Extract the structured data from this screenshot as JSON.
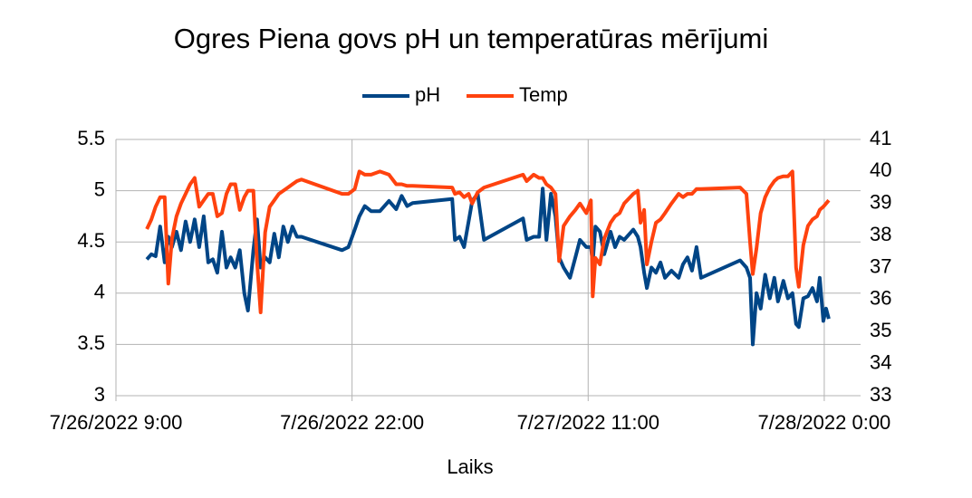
{
  "chart_data": {
    "type": "line",
    "title": "Ogres Piena govs pH un temperatūras mērījumi",
    "x_label": "Laiks",
    "x": [
      "2022-07-26 10:42",
      "2022-07-26 10:57",
      "2022-07-26 11:11",
      "2022-07-26 11:26",
      "2022-07-26 11:41",
      "2022-07-26 11:53",
      "2022-07-26 12:05",
      "2022-07-26 12:20",
      "2022-07-26 12:35",
      "2022-07-26 12:50",
      "2022-07-26 13:05",
      "2022-07-26 13:20",
      "2022-07-26 13:35",
      "2022-07-26 13:50",
      "2022-07-26 14:05",
      "2022-07-26 14:20",
      "2022-07-26 14:35",
      "2022-07-26 14:50",
      "2022-07-26 15:05",
      "2022-07-26 15:19",
      "2022-07-26 15:34",
      "2022-07-26 15:49",
      "2022-07-26 16:04",
      "2022-07-26 16:16",
      "2022-07-26 16:34",
      "2022-07-26 16:46",
      "2022-07-26 16:58",
      "2022-07-26 17:13",
      "2022-07-26 17:28",
      "2022-07-26 17:43",
      "2022-07-26 17:58",
      "2022-07-26 18:13",
      "2022-07-26 18:28",
      "2022-07-26 18:43",
      "2022-07-26 18:58",
      "2022-07-26 19:13",
      "2022-07-26 21:27",
      "2022-07-26 21:48",
      "2022-07-26 22:09",
      "2022-07-26 22:24",
      "2022-07-26 22:42",
      "2022-07-26 23:03",
      "2022-07-26 23:32",
      "2022-07-27 00:02",
      "2022-07-27 00:26",
      "2022-07-27 00:44",
      "2022-07-27 01:02",
      "2022-07-27 01:20",
      "2022-07-27 03:31",
      "2022-07-27 03:40",
      "2022-07-27 03:55",
      "2022-07-27 04:10",
      "2022-07-27 04:25",
      "2022-07-27 04:37",
      "2022-07-27 04:55",
      "2022-07-27 05:16",
      "2022-07-27 07:25",
      "2022-07-27 07:37",
      "2022-07-27 08:00",
      "2022-07-27 08:18",
      "2022-07-27 08:30",
      "2022-07-27 08:42",
      "2022-07-27 08:57",
      "2022-07-27 09:12",
      "2022-07-27 09:24",
      "2022-07-27 09:39",
      "2022-07-27 10:00",
      "2022-07-27 10:18",
      "2022-07-27 10:33",
      "2022-07-27 10:54",
      "2022-07-27 11:09",
      "2022-07-27 11:15",
      "2022-07-27 11:24",
      "2022-07-27 11:39",
      "2022-07-27 11:53",
      "2022-07-27 12:14",
      "2022-07-27 12:29",
      "2022-07-27 12:44",
      "2022-07-27 12:59",
      "2022-07-27 13:29",
      "2022-07-27 13:44",
      "2022-07-27 13:53",
      "2022-07-27 14:05",
      "2022-07-27 14:14",
      "2022-07-27 14:29",
      "2022-07-27 14:44",
      "2022-07-27 14:59",
      "2022-07-27 15:14",
      "2022-07-27 15:35",
      "2022-07-27 15:59",
      "2022-07-27 16:13",
      "2022-07-27 16:28",
      "2022-07-27 16:43",
      "2022-07-27 16:58",
      "2022-07-27 17:13",
      "2022-07-27 19:22",
      "2022-07-27 19:43",
      "2022-07-27 19:55",
      "2022-07-27 20:04",
      "2022-07-27 20:16",
      "2022-07-27 20:30",
      "2022-07-27 20:45",
      "2022-07-27 21:00",
      "2022-07-27 21:15",
      "2022-07-27 21:27",
      "2022-07-27 21:45",
      "2022-07-27 22:00",
      "2022-07-27 22:15",
      "2022-07-27 22:27",
      "2022-07-27 22:36",
      "2022-07-27 22:51",
      "2022-07-27 23:06",
      "2022-07-27 23:21",
      "2022-07-27 23:36",
      "2022-07-27 23:45",
      "2022-07-27 23:57",
      "2022-07-28 00:06",
      "2022-07-28 00:15"
    ],
    "series": [
      {
        "name": "pH",
        "color": "#004586",
        "values": [
          4.33,
          4.38,
          4.36,
          4.65,
          4.3,
          4.55,
          4.45,
          4.6,
          4.42,
          4.7,
          4.5,
          4.72,
          4.45,
          4.75,
          4.3,
          4.33,
          4.2,
          4.6,
          4.25,
          4.35,
          4.25,
          4.42,
          4.0,
          3.83,
          4.42,
          4.72,
          4.25,
          4.35,
          4.3,
          4.58,
          4.35,
          4.65,
          4.5,
          4.65,
          4.55,
          4.55,
          4.42,
          4.45,
          4.62,
          4.75,
          4.85,
          4.8,
          4.8,
          4.9,
          4.82,
          4.95,
          4.85,
          4.88,
          4.92,
          4.52,
          4.55,
          4.45,
          4.7,
          4.9,
          4.97,
          4.52,
          4.73,
          4.52,
          4.55,
          4.55,
          5.02,
          4.52,
          4.97,
          4.75,
          4.35,
          4.25,
          4.15,
          4.35,
          4.52,
          4.45,
          4.45,
          4.3,
          4.65,
          4.6,
          4.38,
          4.6,
          4.45,
          4.55,
          4.52,
          4.62,
          4.55,
          4.45,
          4.2,
          4.05,
          4.25,
          4.2,
          4.3,
          4.15,
          4.22,
          4.15,
          4.28,
          4.35,
          4.22,
          4.45,
          4.15,
          4.32,
          4.25,
          4.15,
          3.5,
          4.0,
          3.85,
          4.18,
          3.95,
          4.15,
          3.92,
          4.12,
          3.95,
          4.0,
          3.7,
          3.67,
          3.95,
          3.97,
          4.05,
          3.92,
          4.15,
          3.73,
          3.85,
          3.75
        ]
      },
      {
        "name": "Temp",
        "color": "#ff420e",
        "axis": "y2",
        "values": [
          38.2,
          38.5,
          38.9,
          39.2,
          39.2,
          36.5,
          37.9,
          38.6,
          39.0,
          39.3,
          39.6,
          39.8,
          38.9,
          39.1,
          39.3,
          39.3,
          38.6,
          38.7,
          39.3,
          39.6,
          39.6,
          38.8,
          39.2,
          39.4,
          39.4,
          37.2,
          35.6,
          38.1,
          38.9,
          39.1,
          39.3,
          39.4,
          39.5,
          39.6,
          39.7,
          39.75,
          39.3,
          39.3,
          39.45,
          40.0,
          39.9,
          39.9,
          40.0,
          39.9,
          39.6,
          39.6,
          39.55,
          39.55,
          39.5,
          39.3,
          39.35,
          39.2,
          39.3,
          39.0,
          39.35,
          39.5,
          39.9,
          39.7,
          39.9,
          39.8,
          39.8,
          39.6,
          39.5,
          39.3,
          37.2,
          38.3,
          38.6,
          38.8,
          39.0,
          38.7,
          39.1,
          36.1,
          37.3,
          37.1,
          37.9,
          38.4,
          38.6,
          38.7,
          39.0,
          39.3,
          39.4,
          38.4,
          38.8,
          37.1,
          37.8,
          38.4,
          38.5,
          38.7,
          39.0,
          39.3,
          39.2,
          39.3,
          39.3,
          39.45,
          39.45,
          39.5,
          39.3,
          37.8,
          36.8,
          37.6,
          38.7,
          39.2,
          39.5,
          39.7,
          39.8,
          39.85,
          39.85,
          40.0,
          37.0,
          36.4,
          37.7,
          38.3,
          38.5,
          38.6,
          38.8,
          38.9,
          39.0,
          39.1
        ]
      }
    ],
    "xlim": [
      "2022-07-26 09:00",
      "2022-07-28 02:00"
    ],
    "xticks": [
      {
        "value": "2022-07-26 09:00",
        "label": "7/26/2022 9:00"
      },
      {
        "value": "2022-07-26 22:00",
        "label": "7/26/2022 22:00"
      },
      {
        "value": "2022-07-27 11:00",
        "label": "7/27/2022 11:00"
      },
      {
        "value": "2022-07-28 00:00",
        "label": "7/28/2022 0:00"
      }
    ],
    "ylim": [
      3,
      5.5
    ],
    "yticks": [
      3,
      3.5,
      4,
      4.5,
      5,
      5.5
    ],
    "y2lim": [
      33,
      41
    ],
    "y2ticks": [
      33,
      34,
      35,
      36,
      37,
      38,
      39,
      40,
      41
    ],
    "grid": true,
    "legend": "top"
  }
}
